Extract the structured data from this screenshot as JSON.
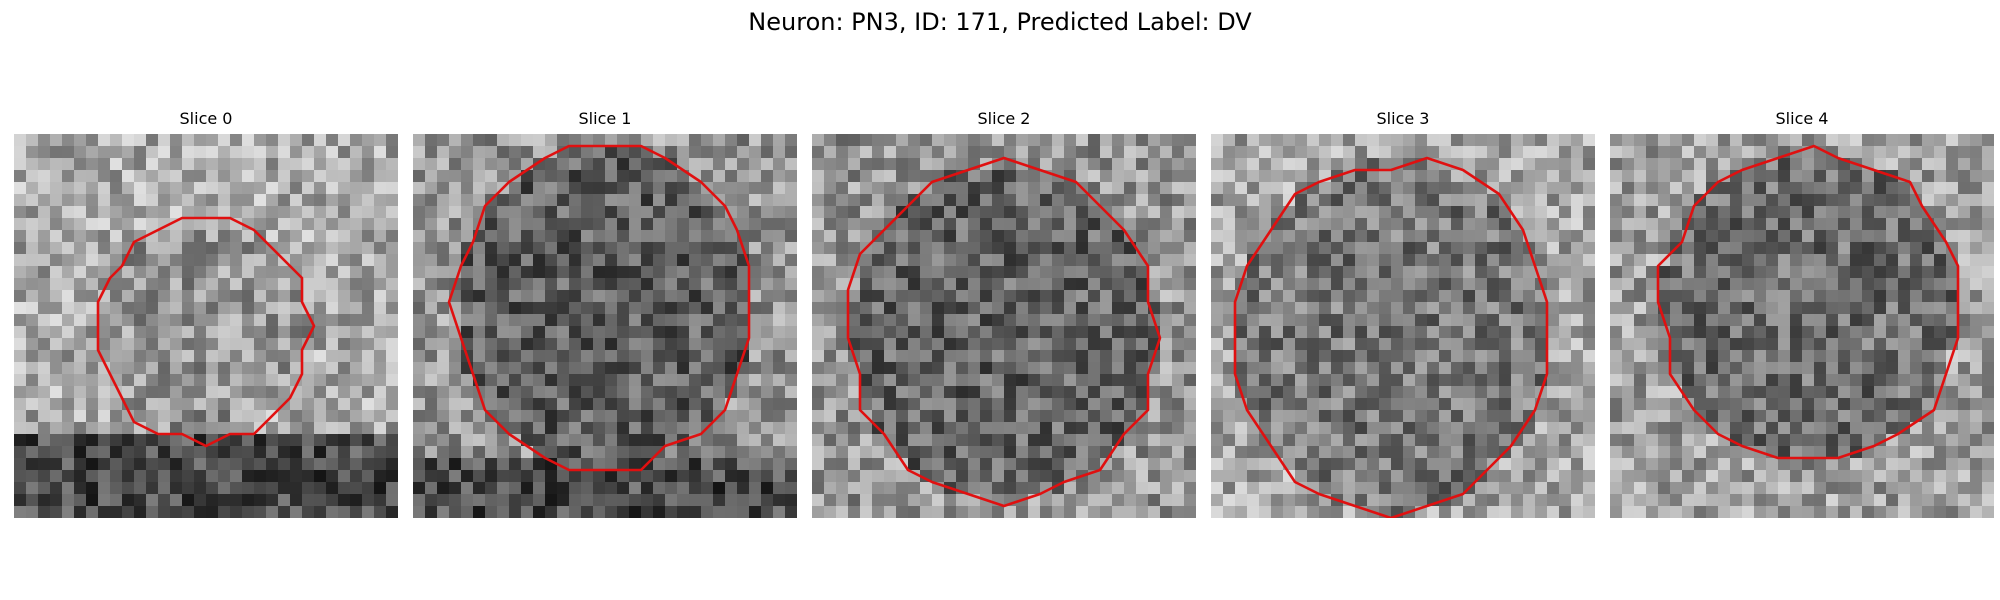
{
  "figure": {
    "title": "Neuron: PN3, ID: 171, Predicted Label: DV"
  },
  "contour_color": "#e01010",
  "panels": [
    {
      "title": "Slice 0",
      "mean_gray": 170,
      "center": [
        0.49,
        0.51
      ],
      "radius": [
        0.28,
        0.29
      ],
      "inner_tone": 150,
      "dark_band_below": true
    },
    {
      "title": "Slice 1",
      "mean_gray": 150,
      "center": [
        0.5,
        0.45
      ],
      "radius": [
        0.39,
        0.42
      ],
      "inner_tone": 95,
      "dark_band_below": true
    },
    {
      "title": "Slice 2",
      "mean_gray": 150,
      "center": [
        0.5,
        0.52
      ],
      "radius": [
        0.4,
        0.44
      ],
      "inner_tone": 100,
      "dark_band_below": false
    },
    {
      "title": "Slice 3",
      "mean_gray": 165,
      "center": [
        0.47,
        0.53
      ],
      "radius": [
        0.42,
        0.46
      ],
      "inner_tone": 120,
      "dark_band_below": false
    },
    {
      "title": "Slice 4",
      "mean_gray": 160,
      "center": [
        0.52,
        0.45
      ],
      "radius": [
        0.39,
        0.41
      ],
      "inner_tone": 110,
      "dark_band_below": false
    }
  ]
}
